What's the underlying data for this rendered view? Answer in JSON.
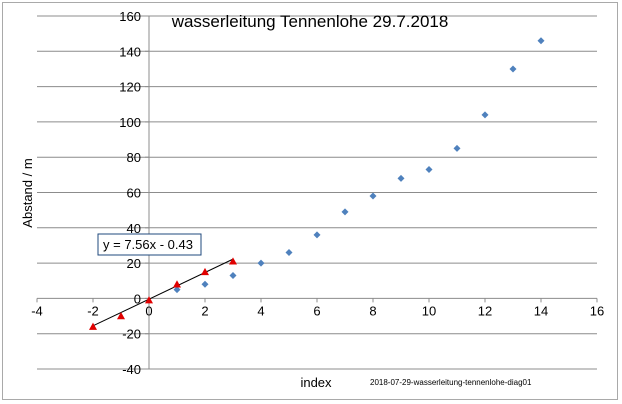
{
  "chart_data": {
    "type": "scatter",
    "title": "wasserleitung Tennenlohe 29.7.2018",
    "xlabel": "index",
    "ylabel": "Abstand / m",
    "xlim": [
      -4,
      16
    ],
    "ylim": [
      -40,
      160
    ],
    "x_ticks": [
      -4,
      -2,
      0,
      2,
      4,
      6,
      8,
      10,
      12,
      14,
      16
    ],
    "y_ticks": [
      -40,
      -20,
      0,
      20,
      40,
      60,
      80,
      100,
      120,
      140,
      160
    ],
    "grid": "horizontal",
    "series": [
      {
        "marker": "diamond",
        "color": "#4f81bd",
        "x": [
          1,
          2,
          3,
          4,
          5,
          6,
          7,
          8,
          9,
          10,
          11,
          12,
          13,
          14
        ],
        "y": [
          5,
          8,
          13,
          20,
          26,
          36,
          49,
          58,
          68,
          73,
          85,
          104,
          130,
          146
        ]
      },
      {
        "marker": "triangle",
        "color": "#e00000",
        "x": [
          -2,
          -1,
          0,
          1,
          2,
          3
        ],
        "y": [
          -16,
          -10,
          -1,
          8,
          15,
          21
        ]
      }
    ],
    "trendline": {
      "slope": 7.56,
      "intercept": -0.43,
      "x_range": [
        -2,
        3
      ],
      "color": "#000000",
      "equation": "y = 7.56x - 0.43"
    },
    "annotation": "2018-07-29-wasserleitung-tennenlohe-diag01"
  }
}
